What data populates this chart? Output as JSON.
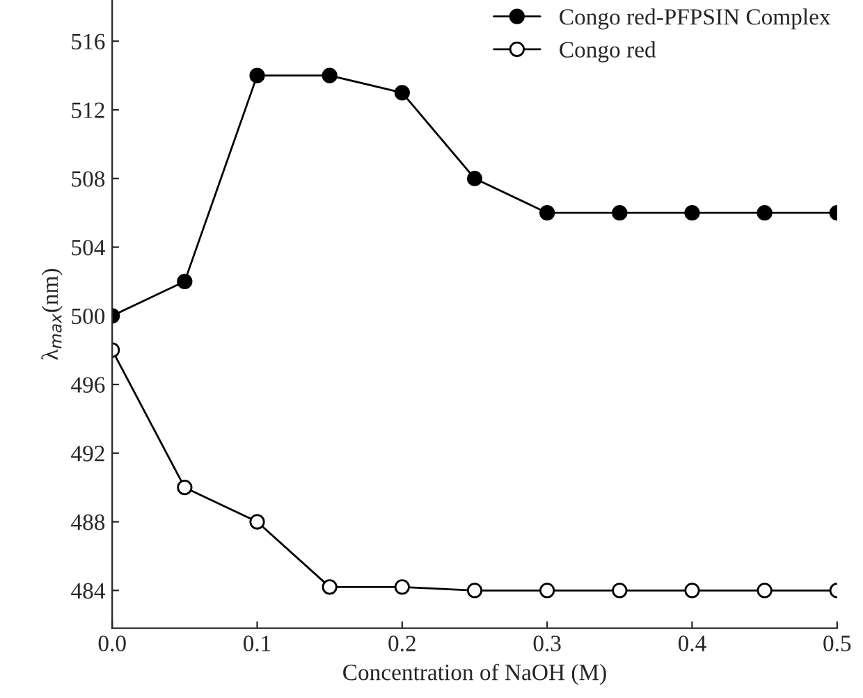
{
  "chart_data": {
    "type": "line",
    "xlabel": "Concentration of NaOH (M)",
    "ylabel": "λ$_{max}$(nm)",
    "x": [
      0,
      0.05,
      0.1,
      0.15,
      0.2,
      0.25,
      0.3,
      0.35,
      0.4,
      0.45,
      0.5
    ],
    "series": [
      {
        "name": "Congo red-PFPSIN Complex",
        "color": "#000000",
        "values": [
          500,
          502,
          514,
          514,
          513,
          508,
          506,
          506,
          506,
          506,
          506
        ]
      },
      {
        "name": "Congo red",
        "color": "#000000",
        "values": [
          498,
          490,
          488,
          484.2,
          484.2,
          484,
          484,
          484,
          484,
          484,
          484
        ]
      }
    ],
    "xlim": [
      0,
      0.5
    ],
    "xticks": [
      {
        "value": 0,
        "label": "0.0"
      },
      0.1,
      0.2,
      0.3,
      0.4,
      0.5
    ],
    "ylim": [
      481.8,
      518.4
    ],
    "yticks": [
      484,
      488,
      492,
      496,
      500,
      504,
      508,
      512,
      516
    ],
    "grid": false,
    "legend": "top right",
    "marker": "circle",
    "line_style": "solid"
  }
}
